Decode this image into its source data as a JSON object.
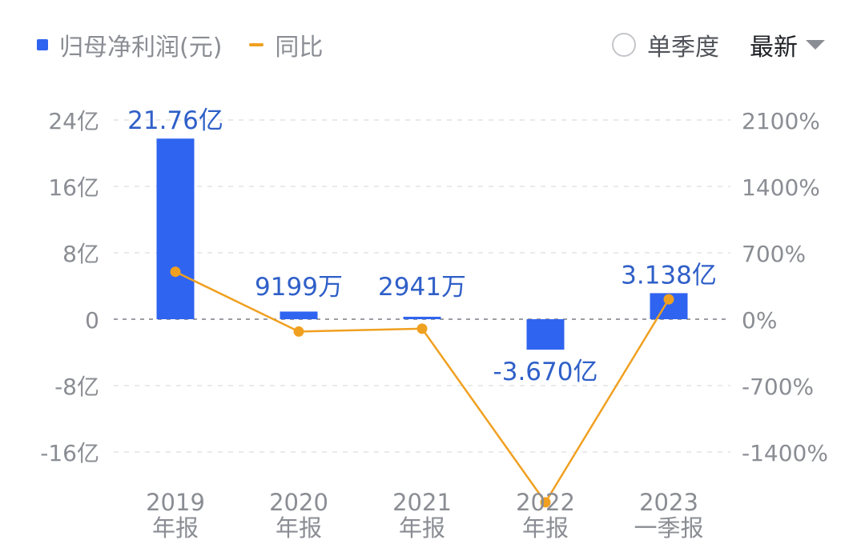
{
  "legend": {
    "bar_label": "归母净利润(元)",
    "line_label": "同比"
  },
  "controls": {
    "single_quarter_label": "单季度",
    "latest_label": "最新"
  },
  "colors": {
    "bar": "#2f64f0",
    "line": "#f0a020",
    "bar_label": "#2f5fc8",
    "axis_text": "#8a8d93",
    "grid": "#e3e4e6",
    "zero_line": "#9a9da2"
  },
  "chart_data": {
    "type": "bar",
    "categories": [
      [
        "2019",
        "年报"
      ],
      [
        "2020",
        "年报"
      ],
      [
        "2021",
        "年报"
      ],
      [
        "2022",
        "年报"
      ],
      [
        "2023",
        "一季报"
      ]
    ],
    "series": [
      {
        "name": "归母净利润(元)",
        "type": "bar",
        "axis": "left",
        "values": [
          21.76,
          0.9199,
          0.2941,
          -3.67,
          3.138
        ],
        "labels": [
          "21.76亿",
          "9199万",
          "2941万",
          "-3.670亿",
          "3.138亿"
        ]
      },
      {
        "name": "同比",
        "type": "line",
        "axis": "right",
        "values": [
          500,
          -130,
          -100,
          -1930,
          210
        ]
      }
    ],
    "left_axis": {
      "ylim": [
        -16,
        24
      ],
      "ticks": [
        24,
        16,
        8,
        0,
        -8,
        -16
      ],
      "tick_labels": [
        "24亿",
        "16亿",
        "8亿",
        "0",
        "-8亿",
        "-16亿"
      ]
    },
    "right_axis": {
      "ylim": [
        -1400,
        2100
      ],
      "ticks": [
        2100,
        1400,
        700,
        0,
        -700,
        -1400
      ],
      "tick_labels": [
        "2100%",
        "1400%",
        "700%",
        "0%",
        "-700%",
        "-1400%"
      ]
    },
    "grid": true
  }
}
